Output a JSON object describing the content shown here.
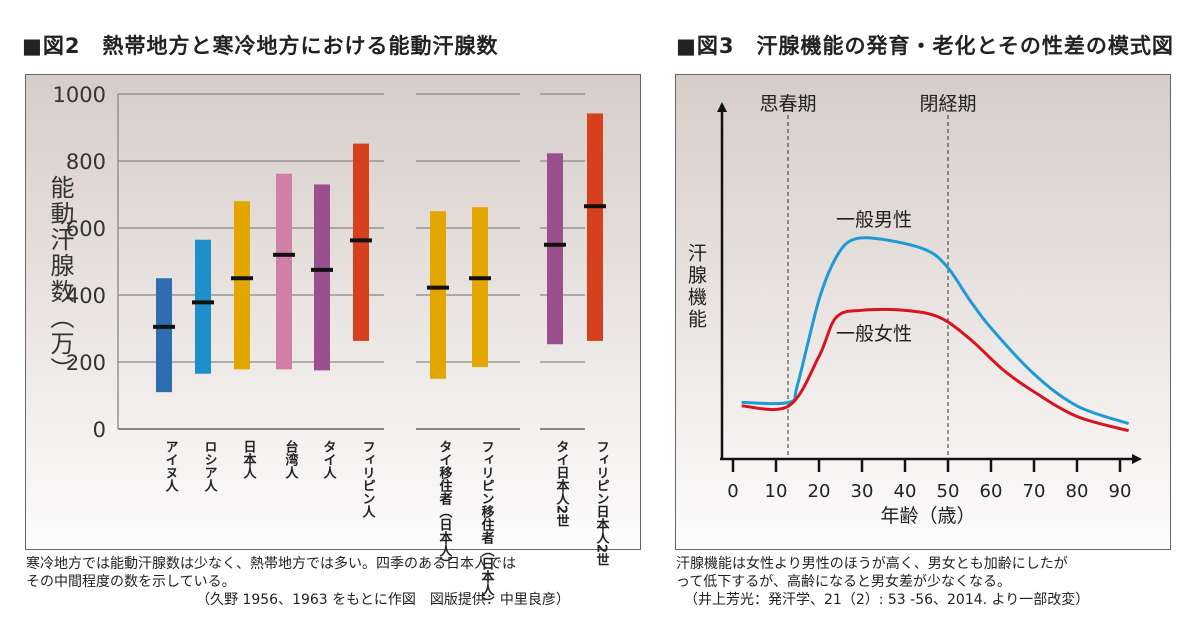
{
  "chart_data": [
    {
      "type": "bar",
      "title": "■図2　熱帯地方と寒冷地方における能動汗腺数",
      "ylabel": "能動汗腺数（万）",
      "ylim": [
        0,
        1000
      ],
      "yticks": [
        "0",
        "200",
        "400",
        "600",
        "800",
        "1000"
      ],
      "grid": true,
      "groups": [
        {
          "categories": [
            "アイヌ人",
            "ロシア人",
            "日本人",
            "台湾人",
            "タイ人",
            "フィリピン人"
          ]
        },
        {
          "categories": [
            "タイ移住者（日本人）",
            "フィリピン移住者（日本人）"
          ]
        },
        {
          "categories": [
            "タイ日本人2世",
            "フィリピン日本人2世"
          ]
        }
      ],
      "series": [
        {
          "category": "アイヌ人",
          "min": 110,
          "median": 305,
          "max": 450,
          "color": "#2e6db0"
        },
        {
          "category": "ロシア人",
          "min": 165,
          "median": 378,
          "max": 565,
          "color": "#1f8fcc"
        },
        {
          "category": "日本人",
          "min": 178,
          "median": 450,
          "max": 680,
          "color": "#e3a500"
        },
        {
          "category": "台湾人",
          "min": 178,
          "median": 520,
          "max": 762,
          "color": "#d27fa8"
        },
        {
          "category": "タイ人",
          "min": 175,
          "median": 475,
          "max": 730,
          "color": "#9c4f8e"
        },
        {
          "category": "フィリピン人",
          "min": 263,
          "median": 563,
          "max": 852,
          "color": "#d6401c"
        },
        {
          "category": "タイ移住者（日本人）",
          "min": 150,
          "median": 422,
          "max": 650,
          "color": "#e3a500"
        },
        {
          "category": "フィリピン移住者（日本人）",
          "min": 185,
          "median": 450,
          "max": 662,
          "color": "#e3a500"
        },
        {
          "category": "タイ日本人2世",
          "min": 253,
          "median": 550,
          "max": 823,
          "color": "#9c4f8e"
        },
        {
          "category": "フィリピン日本人2世",
          "min": 263,
          "median": 665,
          "max": 942,
          "color": "#d6401c"
        }
      ],
      "caption": [
        "寒冷地方では能動汗腺数は少なく、熱帯地方では多い。四季のある日本人では",
        "その中間程度の数を示している。"
      ],
      "source": "（久野 1956、1963 をもとに作図　図版提供：中里良彦）"
    },
    {
      "type": "line",
      "title": "■図3　汗腺機能の発育・老化とその性差の模式図",
      "xlabel": "年齢（歳）",
      "ylabel": "汗腺機能",
      "xlim": [
        0,
        90
      ],
      "xticks": [
        "0",
        "10",
        "20",
        "30",
        "40",
        "50",
        "60",
        "70",
        "80",
        "90"
      ],
      "annotations": [
        {
          "text": "思春期",
          "x": 13
        },
        {
          "text": "閉経期",
          "x": 50
        }
      ],
      "series": [
        {
          "name": "一般男性",
          "color": "#1e9ad6",
          "x": [
            2,
            13,
            15,
            20,
            24,
            28,
            35,
            45,
            50,
            55,
            60,
            70,
            80,
            92
          ],
          "y": [
            16,
            16,
            21,
            45,
            57,
            62,
            62,
            59,
            54,
            45,
            37,
            24,
            15,
            10
          ]
        },
        {
          "name": "一般女性",
          "color": "#d8141c",
          "x": [
            2,
            13,
            20,
            24,
            30,
            40,
            48,
            55,
            63,
            70,
            80,
            92
          ],
          "y": [
            15,
            15,
            29,
            40,
            42,
            42,
            40,
            34,
            25,
            19,
            12,
            8
          ]
        }
      ],
      "caption": [
        "汗腺機能は女性より男性のほうが高く、男女とも加齢にしたが",
        "って低下するが、高齢になると男女差が少なくなる。"
      ],
      "source": "（井上芳光：発汗学、21（2）: 53 -56、2014. より一部改変）"
    }
  ]
}
